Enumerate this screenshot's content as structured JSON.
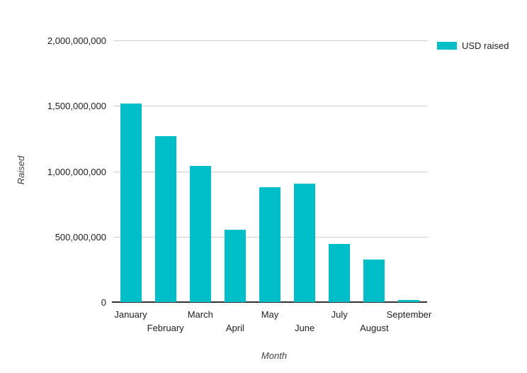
{
  "chart_data": {
    "type": "bar",
    "title": "",
    "categories": [
      "January",
      "February",
      "March",
      "April",
      "May",
      "June",
      "July",
      "August",
      "September"
    ],
    "series": [
      {
        "name": "USD raised",
        "color": "#00BEC8",
        "values": [
          1520000000,
          1270000000,
          1040000000,
          555000000,
          880000000,
          905000000,
          445000000,
          325000000,
          17000000
        ]
      }
    ],
    "xlabel": "Month",
    "ylabel": "Raised",
    "ylim": [
      0,
      2000000000
    ],
    "yticks": [
      0,
      500000000,
      1000000000,
      1500000000,
      2000000000
    ],
    "ytick_labels": [
      "0",
      "500,000,000",
      "1,000,000,000",
      "1,500,000,000",
      "2,000,000,000"
    ],
    "grid": true,
    "legend_position": "top-right",
    "x_labels_staggered": true
  },
  "colors": {
    "background": "#ffffff",
    "gridline": "#cccccc",
    "baseline": "#333333",
    "tick_text": "#212121",
    "axis_title_text": "#424242",
    "bar": "#00BEC8"
  }
}
